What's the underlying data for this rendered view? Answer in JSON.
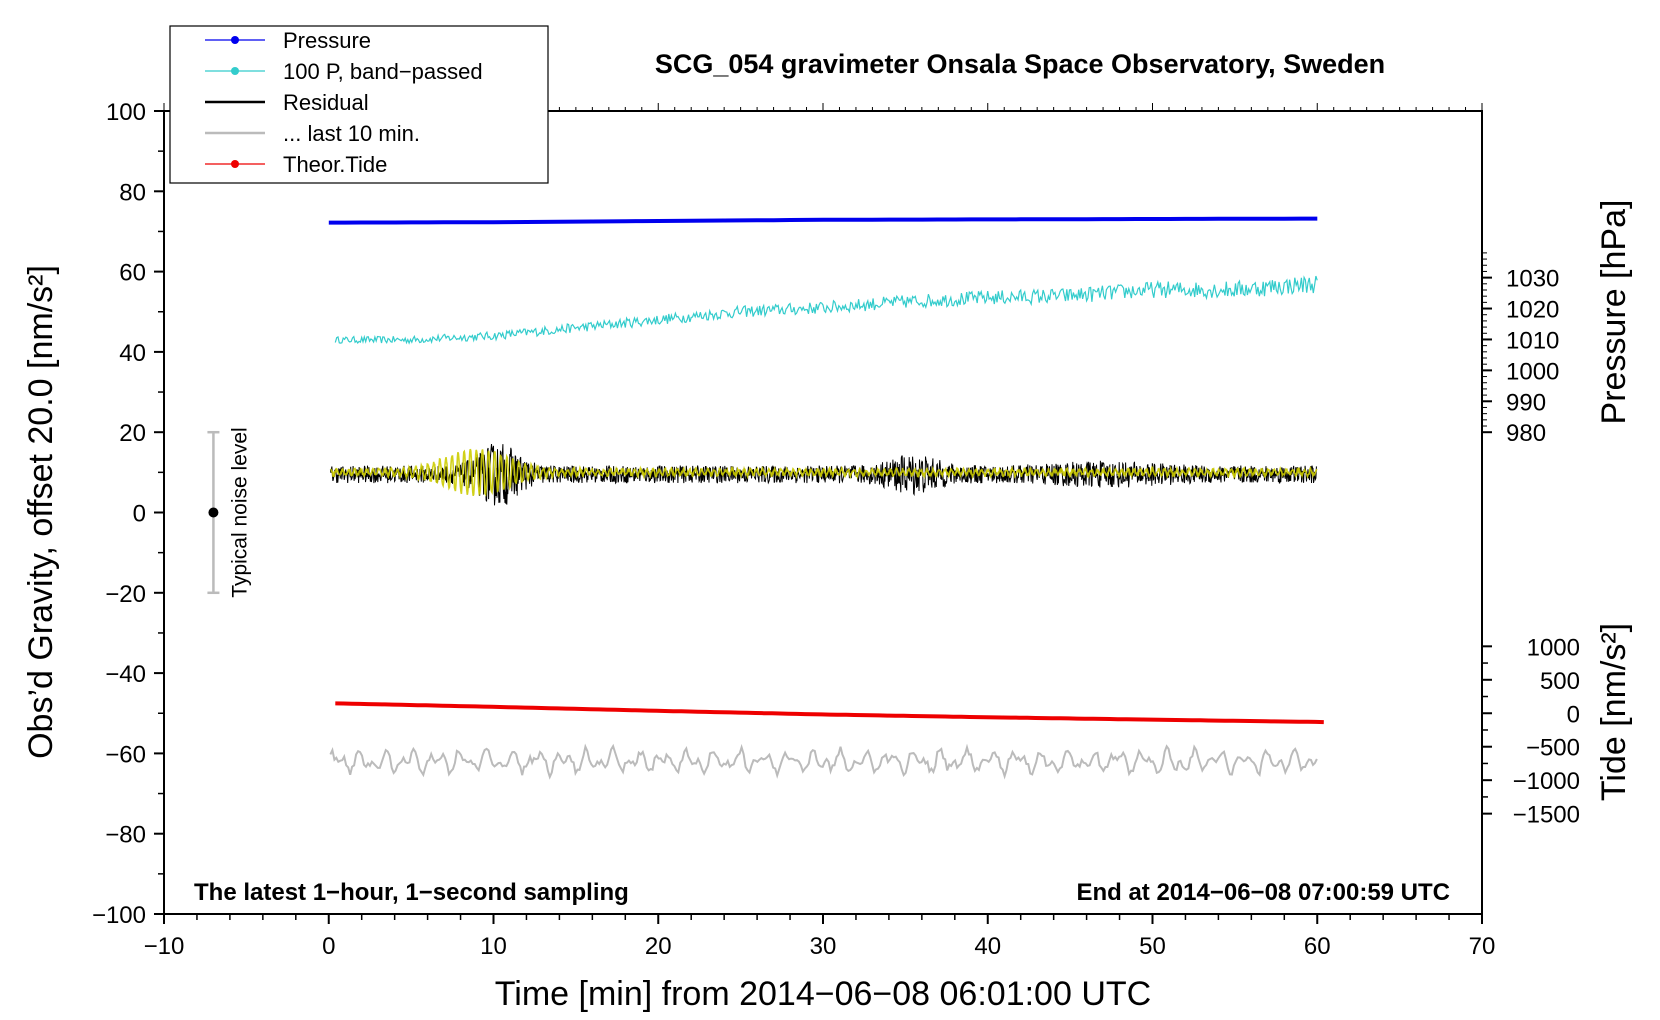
{
  "chart_data": {
    "type": "line",
    "title": "SCG_054 gravimeter Onsala Space Observatory, Sweden",
    "xlabel": "Time [min] from 2014−06−08 06:01:00 UTC",
    "ylabel": "Obs’d Gravity, offset 20.0 [nm/s²]",
    "ylabel_right_pressure": "Pressure [hPa]",
    "ylabel_right_tide": "Tide [nm/s²]",
    "xlim": [
      -10,
      70
    ],
    "ylim": [
      -100,
      100
    ],
    "x_ticks": [
      -10,
      0,
      10,
      20,
      30,
      40,
      50,
      60,
      70
    ],
    "x_tick_labels": [
      "−10",
      "0",
      "10",
      "20",
      "30",
      "40",
      "50",
      "60",
      "70"
    ],
    "y_ticks": [
      -100,
      -80,
      -60,
      -40,
      -20,
      0,
      20,
      40,
      60,
      80,
      100
    ],
    "y_tick_labels": [
      "−100",
      "−80",
      "−60",
      "−40",
      "−20",
      "0",
      "20",
      "40",
      "60",
      "80",
      "100"
    ],
    "pressure_axis": {
      "ticks": [
        980,
        990,
        1000,
        1010,
        1020,
        1030
      ],
      "tick_labels": [
        "980",
        "990",
        "1000",
        "1010",
        "1020",
        "1030"
      ],
      "gravity_at_980": 20.0,
      "gravity_per_hPa": 0.77
    },
    "tide_axis": {
      "ticks": [
        -1500,
        -1000,
        -500,
        0,
        500,
        1000
      ],
      "tick_labels": [
        "−1500",
        "−1000",
        "−500",
        "0",
        "500",
        "1000"
      ],
      "gravity_at_0": -50.0,
      "gravity_per_unit": 0.01667
    },
    "series": [
      {
        "name": "Pressure",
        "color": "#0000ee",
        "marker": "dot",
        "style": "thick",
        "x": [
          0,
          10,
          20,
          30,
          40,
          50,
          60
        ],
        "values": [
          72.2,
          72.3,
          72.6,
          72.9,
          73.0,
          73.1,
          73.2
        ]
      },
      {
        "name": "100 P, band−passed",
        "color": "#33cccc",
        "marker": "dot",
        "style": "noisy",
        "x": [
          0,
          5,
          10,
          15,
          20,
          25,
          30,
          35,
          40,
          45,
          50,
          55,
          60
        ],
        "values": [
          43,
          43,
          44,
          46,
          48,
          50,
          51,
          52.5,
          53.5,
          54,
          55.5,
          55.5,
          57
        ]
      },
      {
        "name": "Residual",
        "color": "#000000",
        "marker": "none",
        "style": "noisy",
        "x": [
          0,
          60
        ],
        "values": [
          9.5,
          9.5
        ]
      },
      {
        "name": "... last 10 min.",
        "color": "#bbbbbb",
        "marker": "none",
        "style": "noisy",
        "x": [
          0,
          60
        ],
        "values": [
          -62,
          -62
        ]
      },
      {
        "name": "Theor.Tide",
        "color": "#ee0000",
        "marker": "dot",
        "style": "thick",
        "x": [
          0,
          10,
          20,
          30,
          40,
          50,
          60.5
        ],
        "values": [
          -47.5,
          -48.4,
          -49.4,
          -50.3,
          -51.0,
          -51.6,
          -52.2
        ]
      }
    ],
    "overlay_series": {
      "name": "band−passed residual",
      "color": "#cccc00",
      "level": 10
    },
    "noise_bar": {
      "label": "Typical noise level",
      "x": -7,
      "center": 0,
      "low": -20,
      "high": 20
    },
    "annotations": {
      "bottom_left": "The latest 1−hour, 1−second sampling",
      "bottom_right": "End at 2014−06−08 07:00:59 UTC"
    },
    "legend_position": "top-left"
  }
}
